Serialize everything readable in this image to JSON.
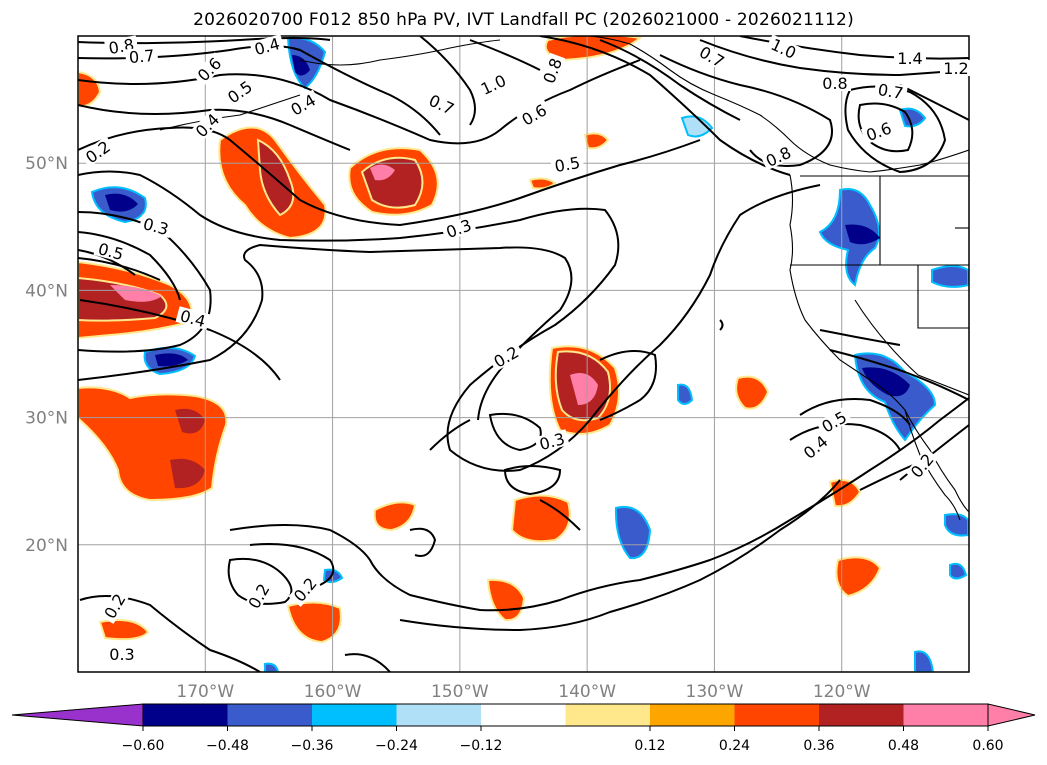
{
  "title": "2026020700 F012 850 hPa PV, IVT Landfall PC (2026021000 - 2026021112)",
  "map": {
    "lon_range": [
      -180,
      -110
    ],
    "lat_range": [
      10,
      60
    ],
    "lat_ticks": [
      {
        "value": 50,
        "label": "50°N"
      },
      {
        "value": 40,
        "label": "40°N"
      },
      {
        "value": 30,
        "label": "30°N"
      },
      {
        "value": 20,
        "label": "20°N"
      }
    ],
    "lon_ticks": [
      {
        "value": -170,
        "label": "170°W"
      },
      {
        "value": -160,
        "label": "160°W"
      },
      {
        "value": -150,
        "label": "150°W"
      },
      {
        "value": -140,
        "label": "140°W"
      },
      {
        "value": -130,
        "label": "130°W"
      },
      {
        "value": -120,
        "label": "120°W"
      }
    ],
    "gridlines": true,
    "contour_labels": [
      "0.8",
      "0.7",
      "0.4",
      "0.6",
      "0.5",
      "0.4",
      "0.4",
      "0.2",
      "0.3",
      "0.5",
      "0.4",
      "0.2",
      "0.2",
      "0.3",
      "0.2",
      "0.2",
      "0.3",
      "1.0",
      "0.8",
      "0.7",
      "0.6",
      "0.5",
      "0.3",
      "0.7",
      "1.0",
      "0.8",
      "1.4",
      "1.2",
      "0.7",
      "0.8",
      "0.6",
      "0.5",
      "0.4",
      "0.2"
    ]
  },
  "colorbar": {
    "ticks": [
      "−0.60",
      "−0.48",
      "−0.36",
      "−0.24",
      "−0.12",
      "0.12",
      "0.24",
      "0.36",
      "0.48",
      "0.60"
    ],
    "colors": {
      "under": "#9932cc",
      "b1": "#00008b",
      "b2": "#3a5bcc",
      "b3": "#00bfff",
      "b4": "#b0e0f8",
      "mid": "#ffffff",
      "r1": "#ffe88c",
      "r2": "#ffa500",
      "r3": "#ff4500",
      "r4": "#b22222",
      "over": "#ff7fa8"
    },
    "extend": "both"
  }
}
